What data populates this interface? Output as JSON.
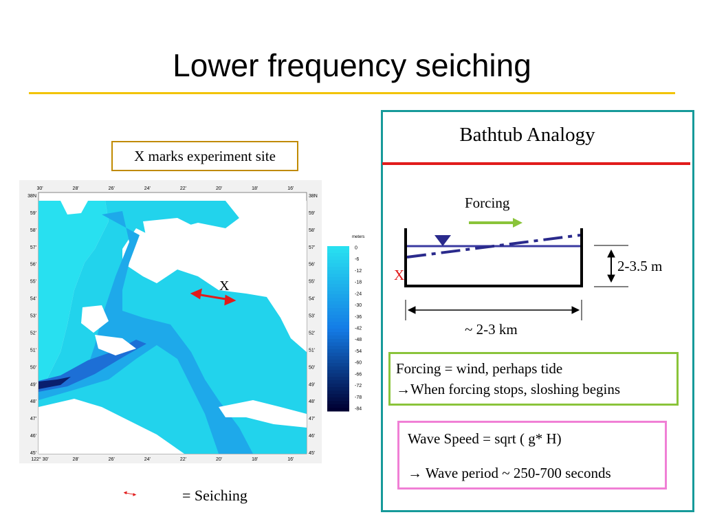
{
  "title": "Lower frequency seiching",
  "colors": {
    "title_rule": "#f2c300",
    "panel_border": "#169a9a",
    "panel_rule": "#e11b1b",
    "forcing_border": "#8ac43a",
    "wave_border": "#f07fd5",
    "site_box_border": "#c08a00",
    "arrow_red": "#e11b1b",
    "arrow_green": "#8ac43a",
    "water_line": "#3a3aa0"
  },
  "map": {
    "site_caption": "X marks experiment site",
    "site_marker": "X",
    "top_ticks": [
      "30'",
      "28'",
      "26'",
      "24'",
      "22'",
      "20'",
      "18'",
      "16'"
    ],
    "bottom_ticks": [
      "122° 30'",
      "28'",
      "26'",
      "24'",
      "22'",
      "20'",
      "18'",
      "16'"
    ],
    "left_lat": [
      "38N",
      "59'",
      "58'",
      "57'",
      "56'",
      "55'",
      "54'",
      "53'",
      "52'",
      "51'",
      "50'",
      "49'",
      "48'",
      "47'",
      "46'",
      "45'"
    ],
    "right_lat": [
      "38N",
      "59'",
      "58'",
      "57'",
      "56'",
      "55'",
      "54'",
      "53'",
      "52'",
      "51'",
      "50'",
      "49'",
      "48'",
      "47'",
      "46'",
      "45'"
    ],
    "depth_legend": {
      "unit": "meters",
      "labels": [
        "0",
        "-6",
        "-12",
        "-18",
        "-24",
        "-30",
        "-36",
        "-42",
        "-48",
        "-54",
        "-60",
        "-66",
        "-72",
        "-78",
        "-84"
      ]
    },
    "seiche_legend_label": "= Seiching"
  },
  "analogy": {
    "title": "Bathtub Analogy",
    "forcing_label": "Forcing",
    "site_marker": "X",
    "depth_label": "2-3.5 m",
    "length_label": "~ 2-3 km",
    "forcing_box": {
      "line1": "Forcing = wind, perhaps tide",
      "line2": "When forcing stops, sloshing begins"
    },
    "wave_box": {
      "line1": "Wave Speed = sqrt ( g* H)",
      "line2": "Wave period ~ 250-700 seconds"
    }
  }
}
